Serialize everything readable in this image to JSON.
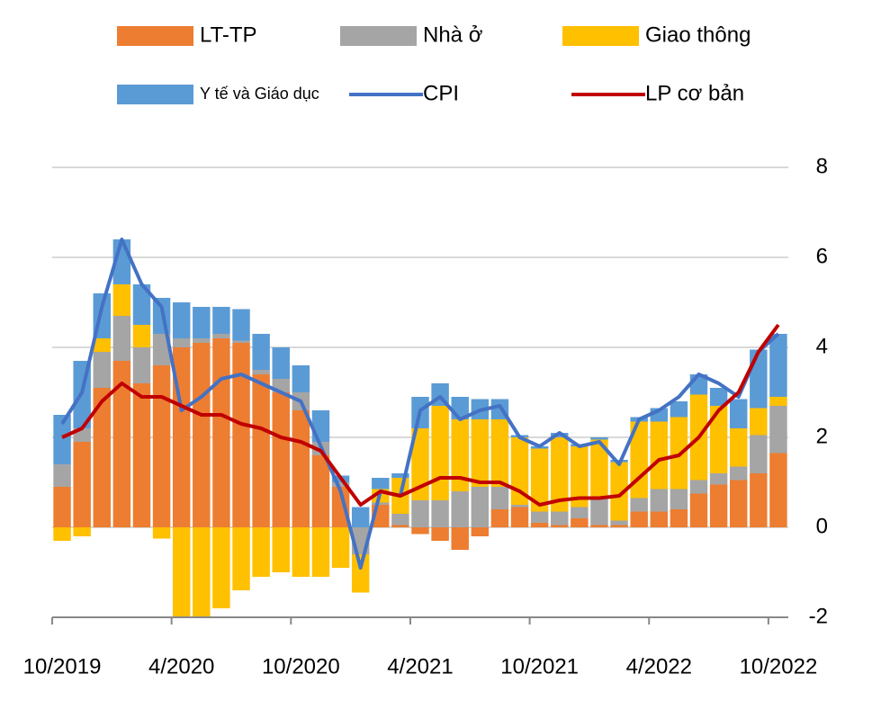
{
  "chart_data": {
    "type": "bar",
    "stacked": true,
    "categories": [
      "10/2019",
      null,
      null,
      null,
      null,
      null,
      "4/2020",
      null,
      null,
      null,
      null,
      null,
      "10/2020",
      null,
      null,
      null,
      null,
      null,
      "4/2021",
      null,
      null,
      null,
      null,
      null,
      "10/2021",
      null,
      null,
      null,
      null,
      null,
      "4/2022",
      null,
      null,
      null,
      null,
      null,
      "10/2022"
    ],
    "series": [
      {
        "name": "LT-TP",
        "type": "bar",
        "color": "#ED7D31",
        "values": [
          0.9,
          1.9,
          3.1,
          3.7,
          3.2,
          3.6,
          4.0,
          4.1,
          4.2,
          4.1,
          3.4,
          3.0,
          2.6,
          1.6,
          0.9,
          0,
          0.5,
          0.05,
          -0.15,
          -0.3,
          -0.5,
          -0.2,
          0.4,
          0.45,
          0.1,
          0.05,
          0.2,
          0.05,
          0.05,
          0.35,
          0.35,
          0.4,
          0.75,
          0.95,
          1.05,
          1.2,
          1.65
        ]
      },
      {
        "name": "Nhà ở",
        "type": "bar",
        "color": "#A5A5A5",
        "values": [
          0.5,
          0.3,
          0.8,
          1.0,
          0.8,
          0.7,
          0.2,
          0.1,
          0.1,
          0.05,
          0.1,
          0.3,
          0.4,
          0.3,
          0.1,
          -0.6,
          0.05,
          0.25,
          0.6,
          0.6,
          0.8,
          0.9,
          0.5,
          0.05,
          0.25,
          0.3,
          0.25,
          0.6,
          0.1,
          0.3,
          0.5,
          0.45,
          0.3,
          0.25,
          0.3,
          0.85,
          1.05
        ]
      },
      {
        "name": "Giao thông",
        "type": "bar",
        "color": "#FFC000",
        "values": [
          -0.3,
          -0.2,
          0.3,
          0.7,
          0.5,
          -0.25,
          -2.0,
          -2.0,
          -1.8,
          -1.4,
          -1.1,
          -1.0,
          -1.1,
          -1.1,
          -0.9,
          -0.85,
          0.3,
          0.8,
          1.6,
          2.1,
          1.6,
          1.5,
          1.5,
          1.5,
          1.4,
          1.65,
          1.35,
          1.3,
          1.3,
          1.7,
          1.5,
          1.6,
          1.9,
          1.5,
          0.85,
          0.6,
          0.2
        ]
      },
      {
        "name": "Y tế và Giáo dục",
        "type": "bar",
        "color": "#5B9BD5",
        "values": [
          1.1,
          1.5,
          1.0,
          1.0,
          0.9,
          0.8,
          0.8,
          0.7,
          0.6,
          0.7,
          0.8,
          0.7,
          0.6,
          0.7,
          0.15,
          0.45,
          0.25,
          0.1,
          0.7,
          0.5,
          0.5,
          0.45,
          0.45,
          0.05,
          0.05,
          0.1,
          0.05,
          0.05,
          0.05,
          0.1,
          0.3,
          0.35,
          0.45,
          0.4,
          0.65,
          1.3,
          1.4
        ]
      },
      {
        "name": "CPI",
        "type": "line",
        "color": "#4472C4",
        "values": [
          2.3,
          3.0,
          4.9,
          6.4,
          5.4,
          4.9,
          2.6,
          2.9,
          3.3,
          3.4,
          3.2,
          3.0,
          2.8,
          1.8,
          0.8,
          -0.9,
          0.8,
          0.7,
          2.6,
          2.9,
          2.4,
          2.6,
          2.7,
          2.0,
          1.8,
          2.1,
          1.8,
          1.9,
          1.4,
          2.4,
          2.6,
          2.9,
          3.4,
          3.2,
          2.9,
          3.9,
          4.3
        ]
      },
      {
        "name": "LP cơ bản",
        "type": "line",
        "color": "#C00000",
        "values": [
          2.0,
          2.2,
          2.8,
          3.2,
          2.9,
          2.9,
          2.7,
          2.5,
          2.5,
          2.3,
          2.2,
          2.0,
          1.9,
          1.7,
          1.1,
          0.5,
          0.8,
          0.7,
          0.9,
          1.1,
          1.1,
          1.0,
          1.0,
          0.8,
          0.5,
          0.6,
          0.65,
          0.65,
          0.7,
          1.1,
          1.5,
          1.6,
          2.0,
          2.6,
          3.0,
          3.9,
          4.5
        ]
      }
    ],
    "ylim": [
      -2,
      8
    ],
    "yticks": [
      -2,
      0,
      2,
      4,
      6,
      8
    ],
    "grid": true,
    "legend": "top"
  }
}
